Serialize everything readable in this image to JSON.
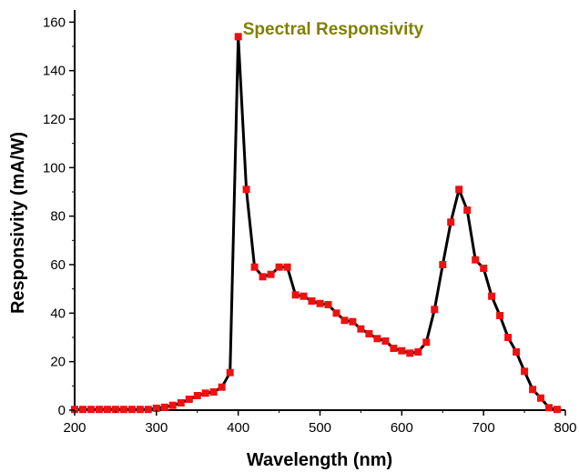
{
  "chart_data": {
    "type": "line",
    "title": "Spectral Responsivity",
    "xlabel": "Wavelength (nm)",
    "ylabel": "Responsivity (mA/W)",
    "xlim": [
      200,
      800
    ],
    "ylim": [
      0,
      165
    ],
    "xticks": [
      200,
      300,
      400,
      500,
      600,
      700,
      800
    ],
    "yticks": [
      0,
      20,
      40,
      60,
      80,
      100,
      120,
      140,
      160
    ],
    "grid": false,
    "legend": "none",
    "colors": {
      "line": "#000000",
      "marker": "#ee1111",
      "title": "#808000",
      "axis": "#000000"
    },
    "series": [
      {
        "x": [
          200,
          210,
          220,
          230,
          240,
          250,
          260,
          270,
          280,
          290,
          300,
          310,
          320,
          330,
          340,
          350,
          360,
          370,
          380,
          390,
          400,
          410,
          420,
          430,
          440,
          450,
          460,
          470,
          480,
          490,
          500,
          510,
          520,
          530,
          540,
          550,
          560,
          570,
          580,
          590,
          600,
          610,
          620,
          630,
          640,
          650,
          660,
          670,
          680,
          690,
          700,
          710,
          720,
          730,
          740,
          750,
          760,
          770,
          780,
          790
        ],
        "y": [
          0.3,
          0.3,
          0.3,
          0.3,
          0.3,
          0.3,
          0.3,
          0.3,
          0.3,
          0.3,
          0.8,
          1.2,
          2,
          3,
          4.5,
          6,
          7,
          7.5,
          9.5,
          15.5,
          154,
          91,
          59,
          55,
          56,
          59,
          59,
          47.5,
          47,
          45,
          44,
          43.5,
          40,
          37,
          36.5,
          33.5,
          31.5,
          29.5,
          28.5,
          25.5,
          24.5,
          23.5,
          24,
          28,
          41.5,
          60,
          77.5,
          91,
          82.5,
          62,
          58.5,
          47,
          39,
          30,
          24,
          16,
          8.5,
          5,
          1,
          0.3
        ]
      }
    ]
  }
}
